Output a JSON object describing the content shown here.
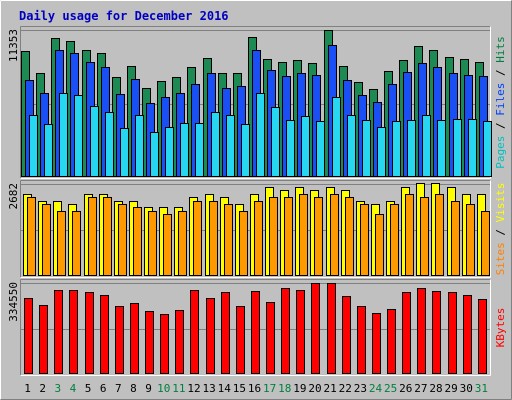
{
  "chart_data": {
    "type": "bar",
    "title": "Daily usage for December 2016",
    "title_color": "#0000c0",
    "background": "#c0c0c0",
    "days": [
      "1",
      "2",
      "3",
      "4",
      "5",
      "6",
      "7",
      "8",
      "9",
      "10",
      "11",
      "12",
      "13",
      "14",
      "15",
      "16",
      "17",
      "18",
      "19",
      "20",
      "21",
      "22",
      "23",
      "24",
      "25",
      "26",
      "27",
      "28",
      "29",
      "30",
      "31"
    ],
    "weekend_days": [
      "3",
      "4",
      "10",
      "11",
      "17",
      "18",
      "24",
      "25",
      "31"
    ],
    "weekday_color": "#000000",
    "weekend_color": "#008040",
    "panels": [
      {
        "id": "top",
        "max_label": "11353",
        "ymax": 11353,
        "axis_labels": [
          {
            "text": "Pages",
            "color": "#00c0c0"
          },
          {
            "text": " / ",
            "color": "#000000"
          },
          {
            "text": "Files",
            "color": "#0040ff"
          },
          {
            "text": " / ",
            "color": "#000000"
          },
          {
            "text": "Hits",
            "color": "#008040"
          }
        ],
        "series": [
          {
            "name": "Hits",
            "color": "#1d8a54",
            "values": [
              9700,
              8000,
              10700,
              10500,
              9800,
              9600,
              7700,
              8600,
              6900,
              7400,
              7700,
              8500,
              9200,
              8000,
              8000,
              10800,
              9100,
              8900,
              9000,
              8800,
              11353,
              8600,
              7300,
              6800,
              8200,
              9000,
              10100,
              9800,
              9300,
              9100,
              8900
            ]
          },
          {
            "name": "Files",
            "color": "#1a4ff5",
            "values": [
              7500,
              6500,
              9800,
              9600,
              8900,
              8500,
              6400,
              7600,
              5700,
              6200,
              6500,
              7200,
              8000,
              6900,
              7000,
              9800,
              8300,
              7800,
              8000,
              7900,
              10200,
              7500,
              6300,
              5800,
              7200,
              8100,
              8800,
              8500,
              8000,
              7900,
              7800
            ]
          },
          {
            "name": "Pages",
            "color": "#27d6f0",
            "values": [
              4800,
              4100,
              6500,
              6300,
              5500,
              5000,
              3800,
              4800,
              3500,
              3900,
              4200,
              4200,
              5000,
              4800,
              4100,
              6500,
              5400,
              4400,
              4700,
              4300,
              6200,
              4800,
              4400,
              3900,
              4300,
              4400,
              4800,
              4400,
              4500,
              4500,
              4300
            ]
          }
        ]
      },
      {
        "id": "middle",
        "max_label": "2682",
        "ymax": 2682,
        "axis_labels": [
          {
            "text": "Sites",
            "color": "#ff8000"
          },
          {
            "text": " / ",
            "color": "#000000"
          },
          {
            "text": "Visits",
            "color": "#ffff00"
          }
        ],
        "series": [
          {
            "name": "Visits",
            "color": "#ffff00",
            "values": [
              2400,
              2200,
              2200,
              2100,
              2400,
              2400,
              2200,
              2200,
              2000,
              2000,
              2000,
              2300,
              2400,
              2300,
              2100,
              2400,
              2600,
              2500,
              2600,
              2500,
              2600,
              2500,
              2200,
              2100,
              2200,
              2600,
              2700,
              2700,
              2600,
              2400,
              2400
            ]
          },
          {
            "name": "Sites",
            "color": "#ff9900",
            "values": [
              2300,
              2100,
              1900,
              1900,
              2300,
              2300,
              2100,
              2000,
              1900,
              1800,
              1900,
              2200,
              2200,
              2100,
              1900,
              2200,
              2300,
              2300,
              2400,
              2300,
              2400,
              2300,
              2100,
              1800,
              2100,
              2400,
              2300,
              2400,
              2200,
              2100,
              1900
            ]
          }
        ]
      },
      {
        "id": "bottom",
        "max_label": "334550",
        "ymax": 334550,
        "axis_labels": [
          {
            "text": "KBytes",
            "color": "#ff0000"
          }
        ],
        "series": [
          {
            "name": "KBytes",
            "color": "#ff0000",
            "values": [
              280000,
              255000,
              310000,
              308000,
              300000,
              290000,
              250000,
              260000,
              230000,
              222000,
              236000,
              310000,
              280000,
              300000,
              250000,
              305000,
              266000,
              315000,
              310000,
              334550,
              334550,
              285000,
              250000,
              225000,
              240000,
              300000,
              315000,
              306000,
              300000,
              290000,
              275000
            ]
          }
        ]
      }
    ]
  }
}
